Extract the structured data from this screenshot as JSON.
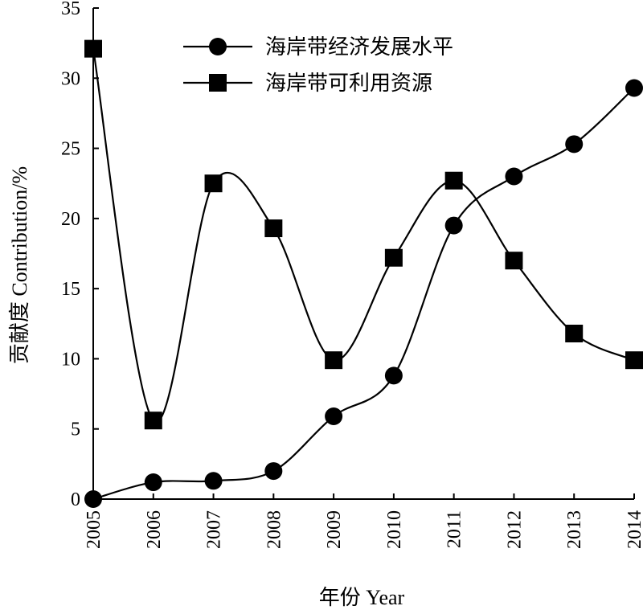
{
  "chart_data": {
    "type": "line",
    "categories": [
      "2005",
      "2006",
      "2007",
      "2008",
      "2009",
      "2010",
      "2011",
      "2012",
      "2013",
      "2014"
    ],
    "series": [
      {
        "name": "海岸带经济发展水平",
        "marker": "circle",
        "values": [
          0.0,
          1.2,
          1.3,
          2.0,
          5.9,
          8.8,
          19.5,
          23.0,
          25.3,
          29.3
        ]
      },
      {
        "name": "海岸带可利用资源",
        "marker": "square",
        "values": [
          32.1,
          5.6,
          22.5,
          19.3,
          9.9,
          17.2,
          22.7,
          17.0,
          11.8,
          9.9
        ]
      }
    ],
    "xlabel": "年份 Year",
    "ylabel": "贡献度 Contribution/%",
    "ylim": [
      0,
      35
    ],
    "yticks": [
      "0",
      "5",
      "10",
      "15",
      "20",
      "25",
      "30",
      "35"
    ],
    "line_color": "#000000",
    "legend_position": "top-center",
    "grid": false
  }
}
